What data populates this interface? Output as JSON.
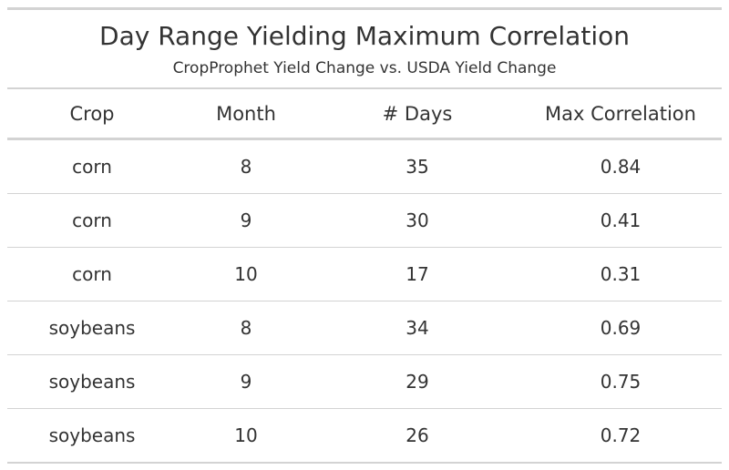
{
  "chart_data": {
    "type": "table",
    "title": "Day Range Yielding Maximum Correlation",
    "subtitle": "CropProphet Yield Change vs. USDA Yield Change",
    "columns": [
      "Crop",
      "Month",
      "# Days",
      "Max Correlation"
    ],
    "rows": [
      [
        "corn",
        "8",
        "35",
        "0.84"
      ],
      [
        "corn",
        "9",
        "30",
        "0.41"
      ],
      [
        "corn",
        "10",
        "17",
        "0.31"
      ],
      [
        "soybeans",
        "8",
        "34",
        "0.69"
      ],
      [
        "soybeans",
        "9",
        "29",
        "0.75"
      ],
      [
        "soybeans",
        "10",
        "26",
        "0.72"
      ]
    ]
  },
  "colors": {
    "text": "#333333",
    "rule": "#d3d3d3",
    "background": "#ffffff"
  }
}
